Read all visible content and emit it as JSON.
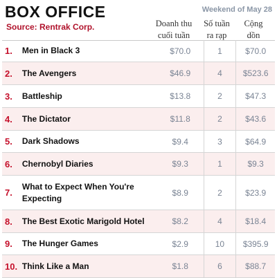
{
  "header": {
    "title": "BOX OFFICE",
    "source": "Source: Rentrak Corp.",
    "weekend": "Weekend of May 28",
    "col_gross_line1": "Doanh thu",
    "col_gross_line2": "cuối tuần",
    "col_weeks_line1": "Số tuần",
    "col_weeks_line2": "ra rạp",
    "col_total_line1": "Cộng",
    "col_total_line2": "dồn"
  },
  "chart_data": {
    "type": "table",
    "title": "BOX OFFICE",
    "subtitle": "Weekend of May 28",
    "source": "Source: Rentrak Corp.",
    "columns": [
      "Doanh thu cuối tuần",
      "Số tuần ra rạp",
      "Cộng dồn"
    ],
    "rows": [
      {
        "rank": "1.",
        "movie": "Men in Black 3",
        "gross": "$70.0",
        "weeks": "1",
        "total": "$70.0"
      },
      {
        "rank": "2.",
        "movie": "The Avengers",
        "gross": "$46.9",
        "weeks": "4",
        "total": "$523.6"
      },
      {
        "rank": "3.",
        "movie": "Battleship",
        "gross": "$13.8",
        "weeks": "2",
        "total": "$47.3"
      },
      {
        "rank": "4.",
        "movie": "The Dictator",
        "gross": "$11.8",
        "weeks": "2",
        "total": "$43.6"
      },
      {
        "rank": "5.",
        "movie": "Dark Shadows",
        "gross": "$9.4",
        "weeks": "3",
        "total": "$64.9"
      },
      {
        "rank": "6.",
        "movie": "Chernobyl Diaries",
        "gross": "$9.3",
        "weeks": "1",
        "total": "$9.3"
      },
      {
        "rank": "7.",
        "movie": "What to Expect When You're Expecting",
        "gross": "$8.9",
        "weeks": "2",
        "total": "$23.9"
      },
      {
        "rank": "8.",
        "movie": "The Best Exotic Marigold Hotel",
        "gross": "$8.2",
        "weeks": "4",
        "total": "$18.4"
      },
      {
        "rank": "9.",
        "movie": "The Hunger Games",
        "gross": "$2.9",
        "weeks": "10",
        "total": "$395.9"
      },
      {
        "rank": "10.",
        "movie": "Think Like a Man",
        "gross": "$1.8",
        "weeks": "6",
        "total": "$88.7"
      }
    ]
  },
  "colors": {
    "rank": "#c5102b",
    "source": "#b0122b",
    "alt_row": "#fbeeee",
    "value_text": "#7a8494"
  }
}
